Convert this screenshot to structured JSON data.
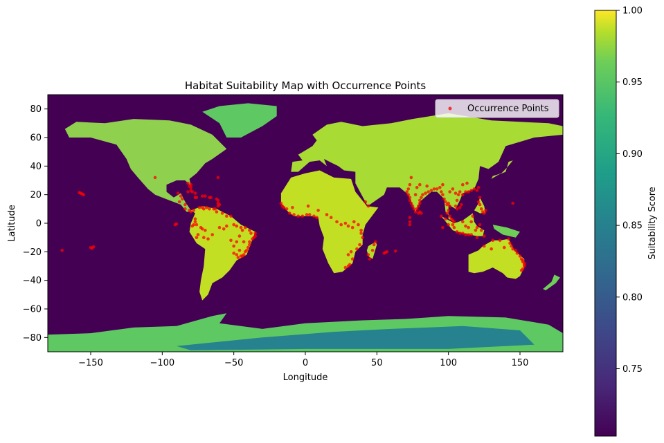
{
  "chart_data": {
    "type": "scatter",
    "title": "Habitat Suitability Map with Occurrence Points",
    "xlabel": "Longitude",
    "ylabel": "Latitude",
    "xlim": [
      -180,
      180
    ],
    "ylim": [
      -90,
      90
    ],
    "xticks": [
      -150,
      -100,
      -50,
      0,
      50,
      100,
      150
    ],
    "yticks": [
      80,
      60,
      40,
      20,
      0,
      -20,
      -40,
      -60,
      -80
    ],
    "grid": false,
    "legend": {
      "placement": "top-right",
      "entries": [
        "Occurrence Points"
      ]
    },
    "colorbar": {
      "label": "Suitability Score",
      "range": [
        0.703,
        1.0
      ],
      "ticks": [
        0.75,
        0.8,
        0.85,
        0.9,
        0.95,
        1.0
      ],
      "tick_labels": [
        "0.75",
        "0.80",
        "0.85",
        "0.90",
        "0.95",
        "1.00"
      ],
      "colormap": "viridis"
    },
    "background_color": "#440154",
    "point_color": "#ff0000",
    "series": [
      {
        "name": "Occurrence Points",
        "points": [
          [
            -157,
            21
          ],
          [
            -155,
            20
          ],
          [
            -158,
            21.5
          ],
          [
            -156,
            20.5
          ],
          [
            -170,
            -19
          ],
          [
            -150,
            -17
          ],
          [
            -149,
            -17.5
          ],
          [
            -148,
            -16.5
          ],
          [
            -105,
            32
          ],
          [
            -89,
            21
          ],
          [
            -87,
            19
          ],
          [
            -86,
            17
          ],
          [
            -88,
            15
          ],
          [
            -84,
            13
          ],
          [
            -84,
            10
          ],
          [
            -81,
            9
          ],
          [
            -80,
            8
          ],
          [
            -78,
            9
          ],
          [
            -77,
            18
          ],
          [
            -76,
            18
          ],
          [
            -72,
            19
          ],
          [
            -70,
            19
          ],
          [
            -67,
            18
          ],
          [
            -66,
            18
          ],
          [
            -80,
            23
          ],
          [
            -82,
            22
          ],
          [
            -79,
            22
          ],
          [
            -77,
            21
          ],
          [
            -80,
            27
          ],
          [
            -81,
            26
          ],
          [
            -82,
            28
          ],
          [
            -80,
            25
          ],
          [
            -61,
            32
          ],
          [
            -62,
            17
          ],
          [
            -61,
            16
          ],
          [
            -61,
            14
          ],
          [
            -61,
            12
          ],
          [
            -60,
            13
          ],
          [
            -74,
            11
          ],
          [
            -72,
            11
          ],
          [
            -71,
            10
          ],
          [
            -69,
            11
          ],
          [
            -67,
            10
          ],
          [
            -64,
            10
          ],
          [
            -63,
            10
          ],
          [
            -62,
            8
          ],
          [
            -58,
            7
          ],
          [
            -55,
            5
          ],
          [
            -52,
            5
          ],
          [
            -77,
            3
          ],
          [
            -77,
            1
          ],
          [
            -78,
            -1
          ],
          [
            -79,
            -2
          ],
          [
            -76,
            -1
          ],
          [
            -73,
            -3
          ],
          [
            -72,
            -4
          ],
          [
            -70,
            -5
          ],
          [
            -75,
            -8
          ],
          [
            -76,
            -10
          ],
          [
            -71,
            -10
          ],
          [
            -68,
            -11
          ],
          [
            -65,
            -8
          ],
          [
            -60,
            -3
          ],
          [
            -57,
            -4
          ],
          [
            -55,
            -2
          ],
          [
            -50,
            -1
          ],
          [
            -48,
            -2
          ],
          [
            -45,
            -3
          ],
          [
            -44,
            -5
          ],
          [
            -42,
            -3
          ],
          [
            -39,
            -5
          ],
          [
            -38,
            -7
          ],
          [
            -35,
            -7
          ],
          [
            -35,
            -9
          ],
          [
            -36,
            -10
          ],
          [
            -37,
            -11
          ],
          [
            -39,
            -13
          ],
          [
            -39,
            -15
          ],
          [
            -40,
            -17
          ],
          [
            -41,
            -19
          ],
          [
            -42,
            -20
          ],
          [
            -43,
            -22
          ],
          [
            -44,
            -23
          ],
          [
            -45,
            -23
          ],
          [
            -47,
            -24
          ],
          [
            -48,
            -22
          ],
          [
            -46,
            -19
          ],
          [
            -50,
            -16
          ],
          [
            -48,
            -13
          ],
          [
            -52,
            -12
          ],
          [
            -50,
            -21
          ],
          [
            -43,
            -13
          ],
          [
            -46,
            -9
          ],
          [
            -91,
            -1
          ],
          [
            -90,
            -0.5
          ],
          [
            -17,
            14
          ],
          [
            -16,
            12
          ],
          [
            -15,
            11
          ],
          [
            -13,
            10
          ],
          [
            -11,
            7
          ],
          [
            -8,
            6
          ],
          [
            -5,
            5
          ],
          [
            -2,
            5
          ],
          [
            1,
            6
          ],
          [
            3,
            6
          ],
          [
            6,
            5
          ],
          [
            8,
            4
          ],
          [
            -9,
            11
          ],
          [
            2,
            12
          ],
          [
            9,
            9
          ],
          [
            15,
            6
          ],
          [
            18,
            4
          ],
          [
            22,
            1
          ],
          [
            25,
            -1
          ],
          [
            28,
            0
          ],
          [
            30,
            -2
          ],
          [
            33,
            -3
          ],
          [
            34,
            1
          ],
          [
            37,
            -1
          ],
          [
            39,
            -5
          ],
          [
            39,
            -7
          ],
          [
            40,
            -10
          ],
          [
            38,
            -15
          ],
          [
            36,
            -18
          ],
          [
            32,
            -20
          ],
          [
            30,
            -22
          ],
          [
            33,
            -25
          ],
          [
            31,
            -29
          ],
          [
            30,
            -30
          ],
          [
            28,
            -31
          ],
          [
            47,
            -19
          ],
          [
            48,
            -15
          ],
          [
            49,
            -13
          ],
          [
            44,
            -22
          ],
          [
            45,
            -25
          ],
          [
            55,
            -21
          ],
          [
            57,
            -20
          ],
          [
            56,
            -20.5
          ],
          [
            63,
            -19.5
          ],
          [
            44,
            12
          ],
          [
            42,
            15
          ],
          [
            74,
            32
          ],
          [
            73,
            27
          ],
          [
            72,
            24
          ],
          [
            71,
            22
          ],
          [
            72,
            20
          ],
          [
            73,
            18
          ],
          [
            73,
            16
          ],
          [
            74,
            14
          ],
          [
            75,
            12
          ],
          [
            76,
            10
          ],
          [
            77,
            8
          ],
          [
            78,
            10
          ],
          [
            79,
            12
          ],
          [
            80,
            14
          ],
          [
            80,
            16
          ],
          [
            81,
            18
          ],
          [
            82,
            20
          ],
          [
            84,
            21
          ],
          [
            86,
            22
          ],
          [
            88,
            23
          ],
          [
            90,
            24
          ],
          [
            92,
            24
          ],
          [
            94,
            25
          ],
          [
            96,
            27
          ],
          [
            80,
            8
          ],
          [
            81,
            7
          ],
          [
            79,
            7
          ],
          [
            73,
            4
          ],
          [
            73,
            1
          ],
          [
            73,
            -1
          ],
          [
            77,
            20
          ],
          [
            78,
            25
          ],
          [
            80,
            27
          ],
          [
            85,
            26
          ],
          [
            95,
            22
          ],
          [
            96,
            20
          ],
          [
            97,
            17
          ],
          [
            98,
            15
          ],
          [
            99,
            13
          ],
          [
            100,
            14
          ],
          [
            101,
            12
          ],
          [
            100,
            9
          ],
          [
            99,
            7
          ],
          [
            101,
            5
          ],
          [
            102,
            3
          ],
          [
            103,
            2
          ],
          [
            104,
            1
          ],
          [
            103,
            -1
          ],
          [
            104,
            -3
          ],
          [
            106,
            -6
          ],
          [
            108,
            -7
          ],
          [
            110,
            -7
          ],
          [
            112,
            -8
          ],
          [
            114,
            -8
          ],
          [
            116,
            -8
          ],
          [
            100,
            -1
          ],
          [
            98,
            3
          ],
          [
            95,
            5
          ],
          [
            96,
            -3
          ],
          [
            110,
            1
          ],
          [
            112,
            -2
          ],
          [
            114,
            -3
          ],
          [
            116,
            1
          ],
          [
            117,
            5
          ],
          [
            119,
            -5
          ],
          [
            120,
            -3
          ],
          [
            122,
            -1
          ],
          [
            123,
            -5
          ],
          [
            125,
            -9
          ],
          [
            120,
            -10
          ],
          [
            105,
            12
          ],
          [
            106,
            10
          ],
          [
            106,
            16
          ],
          [
            107,
            20
          ],
          [
            105,
            21
          ],
          [
            108,
            22
          ],
          [
            110,
            20
          ],
          [
            112,
            22
          ],
          [
            114,
            22
          ],
          [
            116,
            23
          ],
          [
            118,
            24
          ],
          [
            120,
            23
          ],
          [
            121,
            25
          ],
          [
            122,
            18
          ],
          [
            121,
            15
          ],
          [
            122,
            13
          ],
          [
            123,
            10
          ],
          [
            124,
            8
          ],
          [
            125,
            7
          ],
          [
            126,
            9
          ],
          [
            113,
            28
          ],
          [
            110,
            27
          ],
          [
            103,
            24
          ],
          [
            101,
            22
          ],
          [
            109,
            13
          ],
          [
            108,
            11
          ],
          [
            145,
            14
          ],
          [
            131,
            -12
          ],
          [
            136,
            -12
          ],
          [
            142,
            -11
          ],
          [
            143,
            -14
          ],
          [
            144,
            -16
          ],
          [
            145,
            -18
          ],
          [
            147,
            -19
          ],
          [
            148,
            -21
          ],
          [
            150,
            -23
          ],
          [
            151,
            -25
          ],
          [
            152,
            -27
          ],
          [
            153,
            -28
          ],
          [
            153,
            -30
          ],
          [
            152,
            -32
          ],
          [
            151,
            -33
          ],
          [
            152,
            -26
          ],
          [
            153,
            -29
          ],
          [
            139,
            -17
          ],
          [
            125,
            -16
          ],
          [
            130,
            -18
          ]
        ]
      }
    ]
  }
}
